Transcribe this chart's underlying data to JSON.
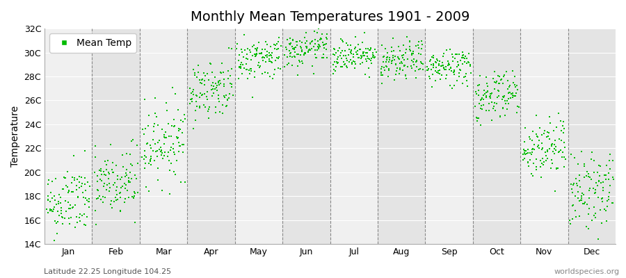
{
  "title": "Monthly Mean Temperatures 1901 - 2009",
  "ylabel": "Temperature",
  "ylim": [
    14,
    32
  ],
  "yticks": [
    14,
    16,
    18,
    20,
    22,
    24,
    26,
    28,
    30,
    32
  ],
  "ytick_labels": [
    "14C",
    "16C",
    "18C",
    "20C",
    "22C",
    "24C",
    "26C",
    "28C",
    "30C",
    "32C"
  ],
  "months": [
    "Jan",
    "Feb",
    "Mar",
    "Apr",
    "May",
    "Jun",
    "Jul",
    "Aug",
    "Sep",
    "Oct",
    "Nov",
    "Dec"
  ],
  "month_means": [
    17.5,
    19.0,
    22.5,
    27.0,
    29.5,
    30.2,
    29.8,
    29.2,
    28.8,
    26.5,
    22.0,
    18.5
  ],
  "month_stds": [
    1.5,
    1.6,
    1.6,
    1.2,
    0.9,
    0.7,
    0.7,
    0.8,
    0.8,
    1.1,
    1.3,
    1.6
  ],
  "n_years": 109,
  "dot_color": "#00bb00",
  "dot_size": 3,
  "legend_label": "Mean Temp",
  "footer_left": "Latitude 22.25 Longitude 104.25",
  "footer_right": "worldspecies.org",
  "bg_color_light": "#f0f0f0",
  "bg_color_dark": "#e4e4e4",
  "title_fontsize": 14,
  "axis_fontsize": 10,
  "tick_fontsize": 9,
  "footer_fontsize": 8
}
